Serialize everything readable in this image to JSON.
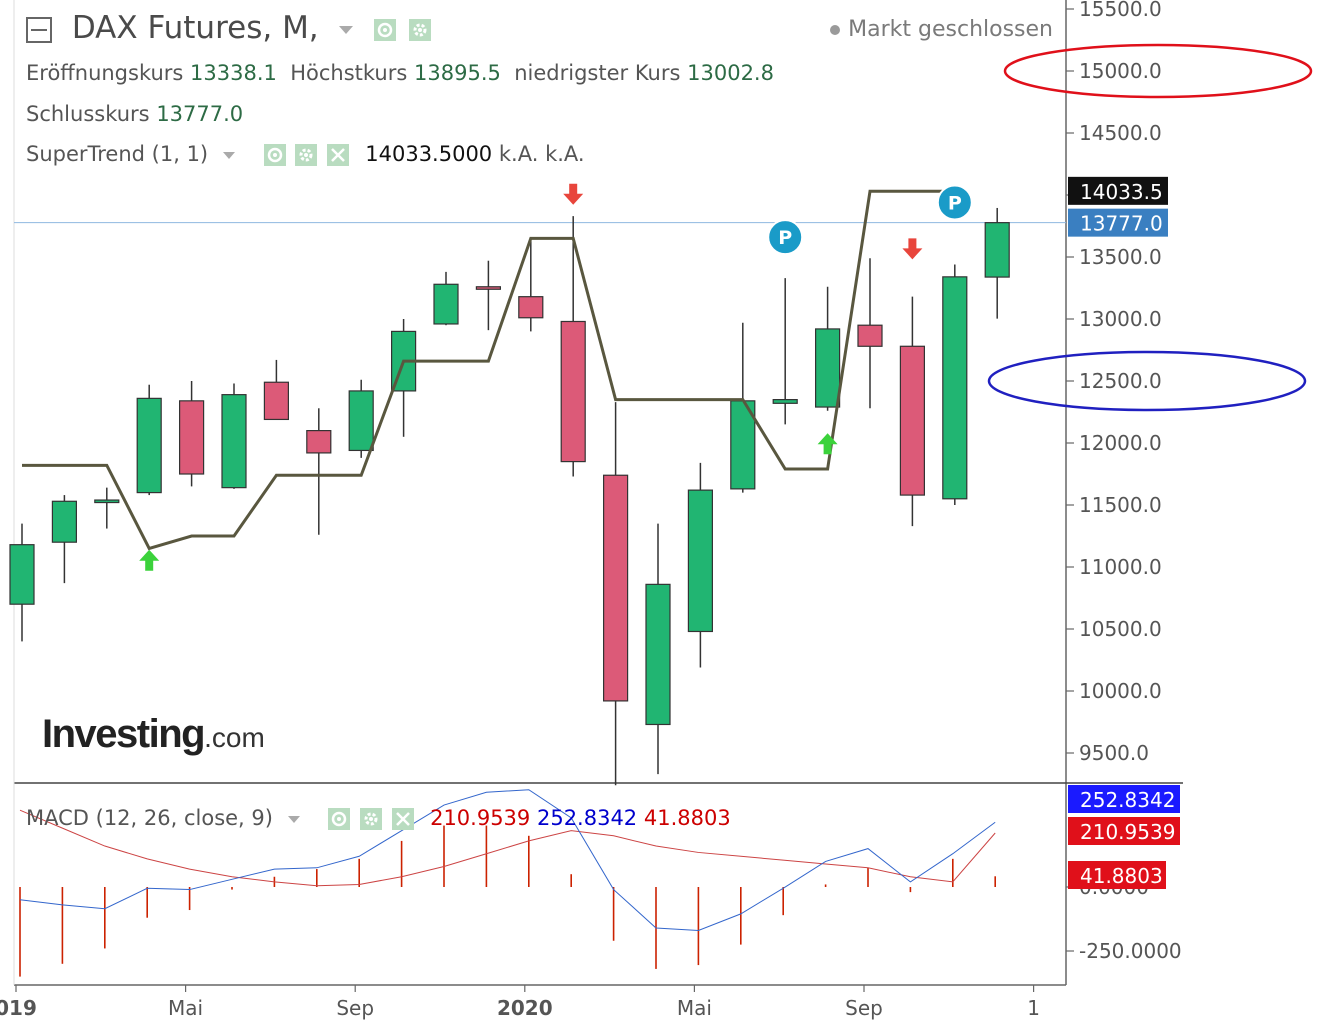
{
  "header": {
    "collapse_icon": "minus-box-icon",
    "symbol": "DAX Futures, M,",
    "status": "Markt geschlossen",
    "ohlc": {
      "open_label": "Eröffnungskurs",
      "open": "13338.1",
      "high_label": "Höchstkurs",
      "high": "13895.5",
      "low_label": "niedrigster Kurs",
      "low": "13002.8",
      "close_label": "Schlusskurs",
      "close": "13777.0"
    }
  },
  "supertrend_legend": {
    "name": "SuperTrend (1, 1)",
    "value": "14033.5000",
    "na1": "k.A.",
    "na2": "k.A."
  },
  "macd_legend": {
    "name": "MACD (12, 26, close, 9)",
    "v1": "210.9539",
    "v2": "252.8342",
    "v3": "41.8803"
  },
  "branding": {
    "logo_main": "Investing",
    "logo_suffix": ".com"
  },
  "colors": {
    "up": "#21b572",
    "down": "#dc5a78",
    "supertrend": "#59573f",
    "macd_line": "#3366cc",
    "signal_line": "#cc4444",
    "hist": "#cc2200"
  },
  "chart_data": [
    {
      "type": "candlestick",
      "title": "DAX Futures, M,",
      "x_ticks": [
        {
          "label": "019",
          "i": 0,
          "bold": true
        },
        {
          "label": "Mai",
          "i": 4
        },
        {
          "label": "Sep",
          "i": 8
        },
        {
          "label": "2020",
          "i": 12,
          "bold": true
        },
        {
          "label": "Mai",
          "i": 16
        },
        {
          "label": "Sep",
          "i": 20
        },
        {
          "label": "1",
          "i": 24
        }
      ],
      "y_ticks": [
        "15500.0",
        "15000.0",
        "14500.0",
        "14000.0",
        "13500.0",
        "13000.0",
        "12500.0",
        "12000.0",
        "11500.0",
        "11000.0",
        "10500.0",
        "10000.0",
        "9500.0"
      ],
      "ylim": [
        9200,
        15700
      ],
      "candles": [
        {
          "o": 10700,
          "h": 11350,
          "l": 10400,
          "c": 11180
        },
        {
          "o": 11200,
          "h": 11580,
          "l": 10870,
          "c": 11530
        },
        {
          "o": 11530,
          "h": 11640,
          "l": 11310,
          "c": 11540
        },
        {
          "o": 11600,
          "h": 12470,
          "l": 11580,
          "c": 12360
        },
        {
          "o": 12340,
          "h": 12500,
          "l": 11650,
          "c": 11750
        },
        {
          "o": 11640,
          "h": 12480,
          "l": 11630,
          "c": 12390
        },
        {
          "o": 12490,
          "h": 12670,
          "l": 12220,
          "c": 12190
        },
        {
          "o": 12100,
          "h": 12280,
          "l": 11260,
          "c": 11920
        },
        {
          "o": 11940,
          "h": 12510,
          "l": 11880,
          "c": 12420
        },
        {
          "o": 12420,
          "h": 13000,
          "l": 12050,
          "c": 12900
        },
        {
          "o": 12960,
          "h": 13380,
          "l": 12950,
          "c": 13280
        },
        {
          "o": 13260,
          "h": 13470,
          "l": 12910,
          "c": 13240
        },
        {
          "o": 13180,
          "h": 13630,
          "l": 12900,
          "c": 13010
        },
        {
          "o": 12980,
          "h": 13830,
          "l": 11730,
          "c": 11850
        },
        {
          "o": 11740,
          "h": 12330,
          "l": 9240,
          "c": 9920
        },
        {
          "o": 9730,
          "h": 11350,
          "l": 9330,
          "c": 10860
        },
        {
          "o": 10480,
          "h": 11840,
          "l": 10190,
          "c": 11620
        },
        {
          "o": 11630,
          "h": 12970,
          "l": 11600,
          "c": 12340
        },
        {
          "o": 12320,
          "h": 13330,
          "l": 12150,
          "c": 12350
        },
        {
          "o": 12290,
          "h": 13260,
          "l": 12260,
          "c": 12920
        },
        {
          "o": 12950,
          "h": 13490,
          "l": 12280,
          "c": 12780
        },
        {
          "o": 12780,
          "h": 13180,
          "l": 11330,
          "c": 11580
        },
        {
          "o": 11550,
          "h": 13440,
          "l": 11500,
          "c": 13340
        },
        {
          "o": 13338.1,
          "h": 13895.5,
          "l": 13002.8,
          "c": 13777.0
        }
      ],
      "supertrend": [
        11820,
        11820,
        11820,
        11150,
        11250,
        11250,
        11740,
        11740,
        11740,
        12660,
        12660,
        12660,
        13650,
        13650,
        12350,
        12350,
        12350,
        12350,
        11790,
        11790,
        14030,
        14030,
        14030
      ],
      "markers": [
        {
          "i": 3,
          "type": "up-arrow",
          "price": 11050
        },
        {
          "i": 13,
          "type": "down-arrow",
          "price": 14010
        },
        {
          "i": 19,
          "type": "up-arrow",
          "price": 11990
        },
        {
          "i": 21,
          "type": "down-arrow",
          "price": 13570
        },
        {
          "i": 18,
          "type": "p-badge",
          "price": 13660
        },
        {
          "i": 22,
          "type": "p-badge",
          "price": 13940
        }
      ],
      "price_labels": [
        {
          "value": "14033.5",
          "price": 14033.5,
          "kind": "supertrend"
        },
        {
          "value": "13777.0",
          "price": 13777.0,
          "kind": "last"
        }
      ],
      "annotations": [
        {
          "type": "red-ellipse",
          "price": 15000
        },
        {
          "type": "blue-ellipse",
          "price": 12500
        }
      ]
    },
    {
      "type": "line",
      "title": "MACD (12, 26, close, 9)",
      "y_ticks": [
        "0.0000",
        "-250.0000"
      ],
      "ylim": [
        -350,
        380
      ],
      "macd_line": [
        -50,
        -70,
        -85,
        -5,
        -10,
        30,
        70,
        75,
        120,
        220,
        320,
        370,
        380,
        270,
        -10,
        -160,
        -170,
        -105,
        -5,
        100,
        150,
        20,
        130,
        252.8342
      ],
      "signal_line": [
        300,
        230,
        160,
        110,
        70,
        40,
        20,
        5,
        10,
        40,
        80,
        130,
        180,
        220,
        200,
        160,
        135,
        120,
        105,
        90,
        75,
        40,
        20,
        210.9539
      ],
      "histogram": [
        -350,
        -300,
        -240,
        -120,
        -90,
        -10,
        40,
        70,
        110,
        180,
        240,
        240,
        200,
        50,
        -210,
        -320,
        -305,
        -225,
        -110,
        10,
        75,
        -20,
        110,
        41.8803
      ],
      "price_labels": [
        {
          "value": "252.8342",
          "v": 300,
          "kind": "macd"
        },
        {
          "value": "210.9539",
          "v": 210,
          "kind": "signal"
        },
        {
          "value": "41.8803",
          "v": 65,
          "kind": "hist"
        }
      ]
    }
  ]
}
